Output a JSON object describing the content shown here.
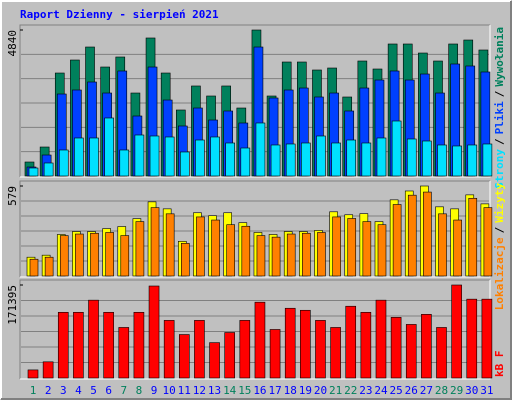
{
  "chart_data": [
    {
      "type": "bar",
      "title": "Raport Dzienny -  sierpień 2021",
      "categories": [
        "1",
        "2",
        "3",
        "4",
        "5",
        "6",
        "7",
        "8",
        "9",
        "10",
        "11",
        "12",
        "13",
        "14",
        "15",
        "16",
        "17",
        "18",
        "19",
        "20",
        "21",
        "22",
        "23",
        "24",
        "25",
        "26",
        "27",
        "28",
        "29",
        "30",
        "31"
      ],
      "category_colors": [
        "#00805c",
        "#0000ff",
        "#0000ff",
        "#0000ff",
        "#0000ff",
        "#0000ff",
        "#00805c",
        "#00805c",
        "#0000ff",
        "#0000ff",
        "#0000ff",
        "#0000ff",
        "#0000ff",
        "#00805c",
        "#00805c",
        "#0000ff",
        "#0000ff",
        "#0000ff",
        "#0000ff",
        "#0000ff",
        "#00805c",
        "#00805c",
        "#0000ff",
        "#0000ff",
        "#0000ff",
        "#0000ff",
        "#0000ff",
        "#00805c",
        "#00805c",
        "#0000ff",
        "#0000ff"
      ],
      "legend_separator": "/",
      "ylim": [
        0,
        4840
      ],
      "yticks": [
        4840
      ],
      "series": [
        {
          "name": "Wywołania",
          "color": "#00805c",
          "values": [
            464,
            961,
            3414,
            3845,
            4276,
            3613,
            3945,
            2751,
            4575,
            3414,
            2188,
            2984,
            2652,
            2984,
            2254,
            4840,
            2652,
            3779,
            3779,
            3514,
            3580,
            2619,
            3812,
            3547,
            4376,
            4376,
            4077,
            3812,
            4376,
            4508,
            4177
          ]
        },
        {
          "name": "Pliki",
          "color": "#0040ff",
          "values": [
            298,
            696,
            2718,
            2851,
            3116,
            2751,
            3481,
            1989,
            3613,
            2519,
            1658,
            2254,
            1856,
            2155,
            1757,
            4276,
            2586,
            2851,
            2917,
            2619,
            2751,
            2155,
            2917,
            3182,
            3481,
            3182,
            3381,
            2751,
            3713,
            3647,
            3448
          ]
        },
        {
          "name": "Strony",
          "color": "#00e0ff",
          "values": [
            265,
            431,
            862,
            1260,
            1260,
            1923,
            862,
            1359,
            1326,
            1293,
            796,
            1193,
            1293,
            1094,
            928,
            1757,
            1028,
            1061,
            1094,
            1326,
            1094,
            1193,
            1094,
            1260,
            1823,
            1227,
            1160,
            1028,
            995,
            1028,
            1061
          ]
        }
      ]
    },
    {
      "type": "bar",
      "ylim": [
        0,
        579
      ],
      "yticks": [
        579
      ],
      "series": [
        {
          "name": "Wizyty",
          "color": "#ffff00",
          "values": [
            121,
            134,
            267,
            286,
            286,
            305,
            318,
            369,
            477,
            432,
            223,
            407,
            388,
            407,
            343,
            280,
            267,
            286,
            286,
            293,
            413,
            394,
            401,
            350,
            490,
            547,
            579,
            445,
            432,
            522,
            464
          ]
        },
        {
          "name": "Lokalizacje",
          "color": "#ff8000",
          "values": [
            108,
            121,
            260,
            270,
            275,
            280,
            260,
            350,
            440,
            400,
            210,
            380,
            360,
            330,
            320,
            260,
            250,
            270,
            275,
            280,
            380,
            370,
            350,
            330,
            460,
            520,
            540,
            400,
            360,
            500,
            440
          ]
        }
      ]
    },
    {
      "type": "bar",
      "ylim": [
        0,
        171395
      ],
      "yticks": [
        171395
      ],
      "series": [
        {
          "name": "kB F",
          "color": "#ff0000",
          "values": [
            14904,
            29808,
            121095,
            121095,
            143451,
            121095,
            93150,
            121095,
            169533,
            106191,
            80109,
            106191,
            65205,
            83835,
            106191,
            139725,
            89424,
            128547,
            124821,
            106191,
            93150,
            132273,
            121095,
            143451,
            111780,
            98739,
            117369,
            93150,
            171395,
            145314,
            145314
          ]
        }
      ]
    }
  ]
}
